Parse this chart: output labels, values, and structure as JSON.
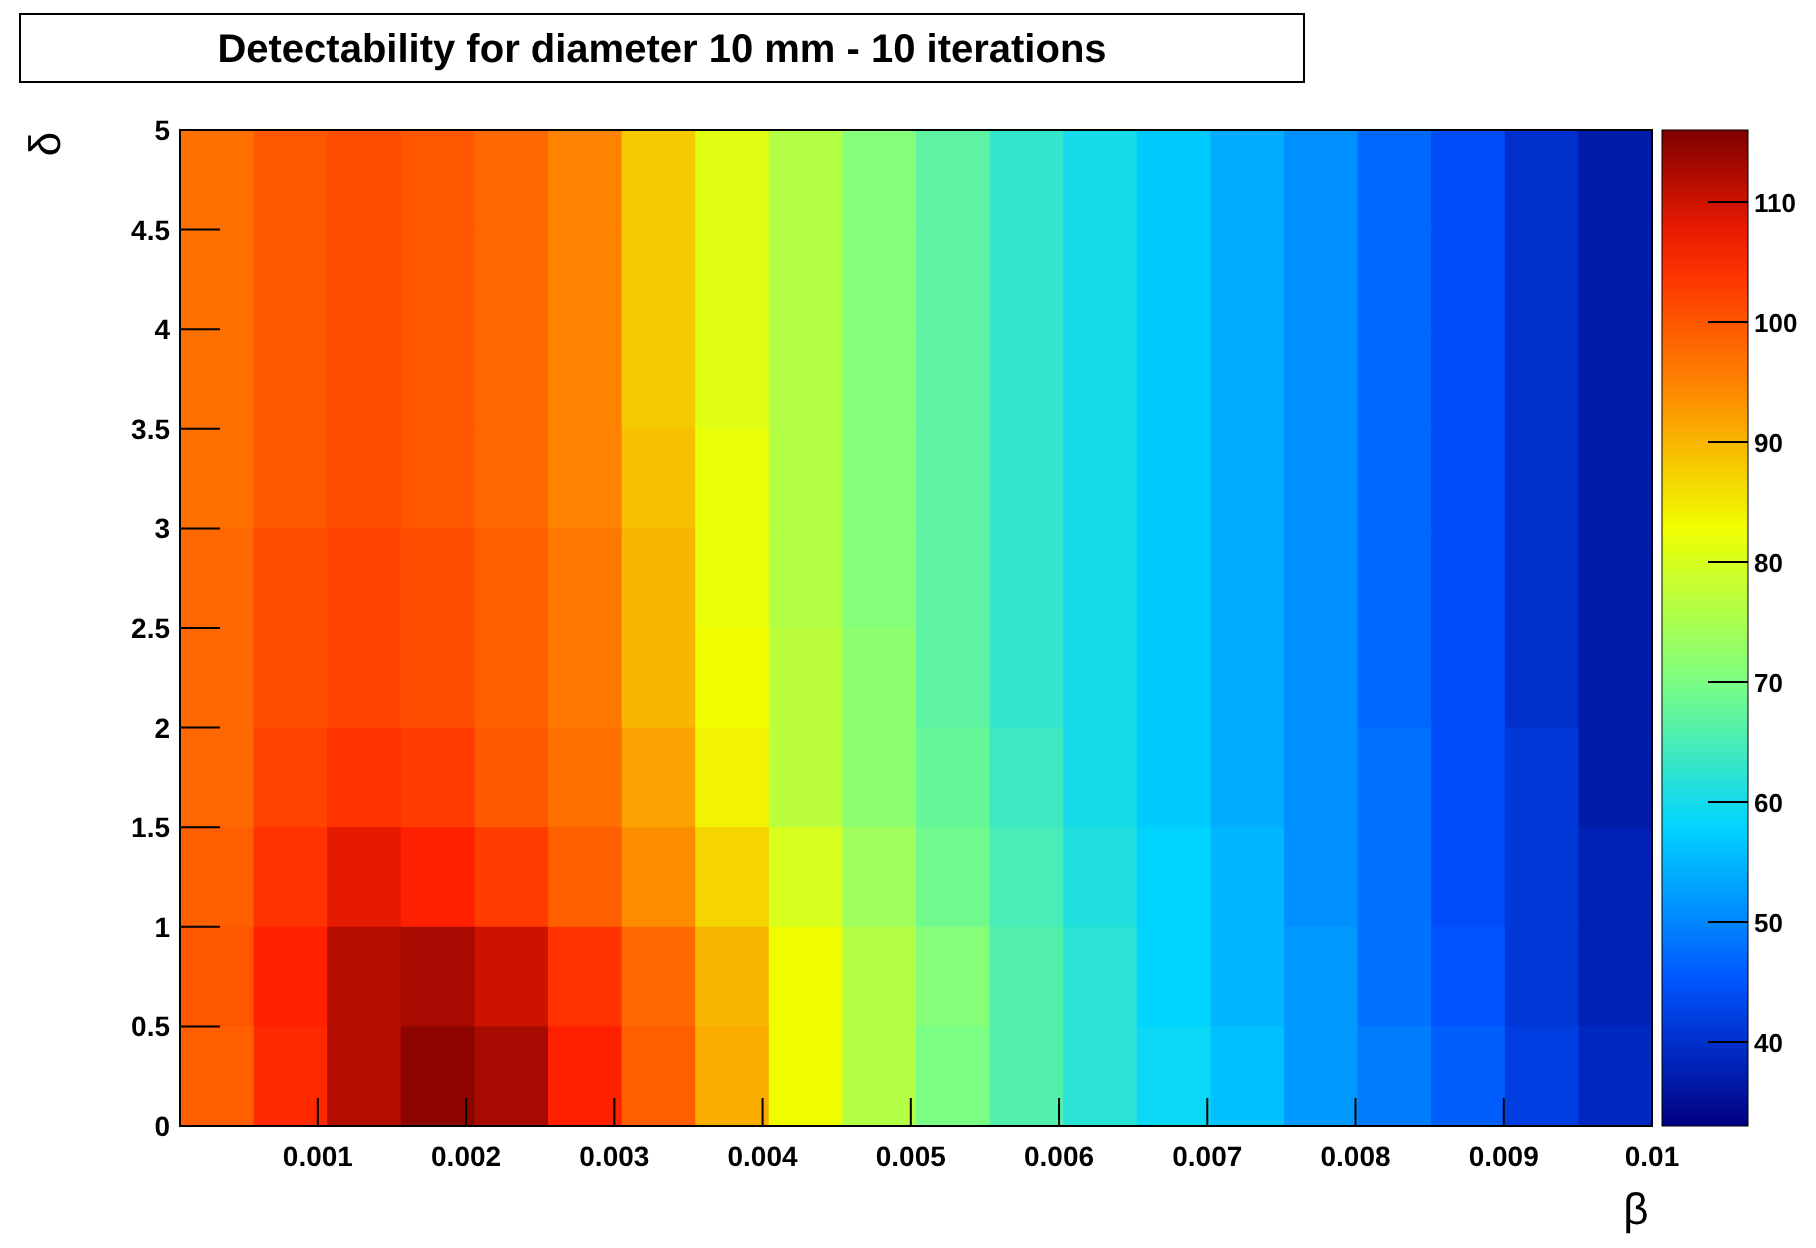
{
  "chart_data": {
    "type": "heatmap",
    "title": "Detectability for diameter 10 mm - 10 iterations",
    "xlabel": "β",
    "ylabel": "δ",
    "xlim": [
      7e-05,
      0.01
    ],
    "xticks": [
      0.001,
      0.002,
      0.003,
      0.004,
      0.005,
      0.006,
      0.007,
      0.008,
      0.009,
      0.01
    ],
    "ylim": [
      0,
      5
    ],
    "yticks": [
      0,
      0.5,
      1,
      1.5,
      2,
      2.5,
      3,
      3.5,
      4,
      4.5,
      5
    ],
    "clim": [
      33,
      116
    ],
    "cticks": [
      40,
      50,
      60,
      70,
      80,
      90,
      100,
      110
    ],
    "cells": [
      [
        97,
        100,
        101,
        100,
        98,
        95,
        88,
        81,
        76,
        71,
        67,
        63,
        60,
        57,
        54,
        51,
        47,
        44,
        40,
        37
      ],
      [
        97,
        100,
        101,
        100,
        98,
        95,
        88,
        81,
        76,
        71,
        67,
        63,
        60,
        57,
        54,
        51,
        47,
        44,
        40,
        37
      ],
      [
        97,
        100,
        101,
        100,
        98,
        95,
        88,
        81,
        76,
        71,
        67,
        63,
        60,
        57,
        54,
        51,
        47,
        44,
        40,
        37
      ],
      [
        97,
        100,
        101,
        100,
        98,
        95,
        89,
        82,
        76,
        71,
        67,
        63,
        60,
        57,
        54,
        51,
        47,
        44,
        40,
        37
      ],
      [
        98,
        101,
        102,
        101,
        99,
        96,
        90,
        82,
        76,
        71,
        67,
        63,
        60,
        57,
        54,
        51,
        47,
        44,
        40,
        37
      ],
      [
        98,
        101,
        102,
        101,
        99,
        96,
        90,
        83,
        77,
        72,
        67,
        63,
        60,
        57,
        54,
        51,
        47,
        44,
        40,
        37
      ],
      [
        98,
        102,
        104,
        103,
        100,
        97,
        92,
        84,
        77,
        72,
        68,
        64,
        60,
        57,
        54,
        51,
        48,
        44,
        41,
        37
      ],
      [
        99,
        104,
        108,
        106,
        103,
        99,
        94,
        87,
        80,
        74,
        69,
        65,
        61,
        58,
        55,
        51,
        48,
        44,
        41,
        38
      ],
      [
        100,
        106,
        112,
        113,
        110,
        104,
        98,
        90,
        83,
        76,
        71,
        66,
        62,
        58,
        55,
        52,
        48,
        45,
        41,
        38
      ],
      [
        99,
        105,
        112,
        115,
        113,
        106,
        99,
        91,
        83,
        76,
        70,
        66,
        62,
        59,
        56,
        52,
        49,
        46,
        42,
        39
      ]
    ]
  }
}
